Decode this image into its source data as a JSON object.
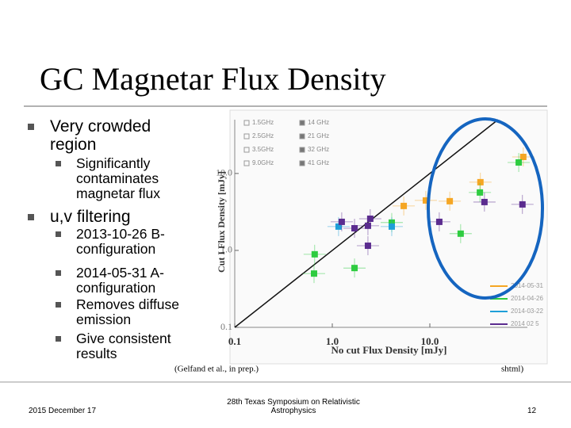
{
  "title": "GC Magnetar Flux Density",
  "bullets": [
    {
      "text": "Very crowded region",
      "sub": [
        "Significantly contaminates magnetar flux"
      ]
    },
    {
      "text": "u,v filtering",
      "sub": [
        "2013-10-26 B-configuration",
        "2014-05-31 A-configuration",
        "Removes diffuse emission",
        "Give consistent results"
      ]
    }
  ],
  "chart_data": {
    "type": "scatter",
    "x_label": "No cut Flux Density [mJy]",
    "y_label": "Cut I Flux Density [mJy]",
    "log": true,
    "xlim": [
      0.1,
      100
    ],
    "ylim": [
      0.1,
      50
    ],
    "xticks": [
      0.1,
      {
        "value": 1,
        "label": "1.0"
      },
      {
        "value": 10,
        "label": "10.0"
      }
    ],
    "yticks": [
      0.1,
      {
        "value": 1,
        "label": "1.0"
      },
      {
        "value": 10,
        "label": "10.0"
      }
    ],
    "frequency_legend": [
      "1.5GHz",
      "14 GHz",
      "2.5GHz",
      "21 GHz",
      "3.5GHz",
      "32 GHz",
      "9.0GHz",
      "41 GHz"
    ],
    "series": [
      {
        "name": "2014-05-31",
        "color": "#f5a623",
        "x": [
          5.4,
          9.1,
          16,
          33,
          90.8
        ],
        "y": [
          3.78,
          4.46,
          4.36,
          7.7,
          16.4
        ]
      },
      {
        "name": "2014-04-26",
        "color": "#2ecc40",
        "x": [
          0.66,
          0.65,
          1.69,
          4.07,
          20.7,
          32.6,
          81.5
        ],
        "y": [
          0.89,
          0.5,
          0.59,
          2.3,
          1.65,
          5.66,
          13.9
        ]
      },
      {
        "name": "2014-03-22",
        "color": "#1e9fd8",
        "x": [
          1.16,
          4.07
        ],
        "y": [
          2.04,
          2.04
        ]
      },
      {
        "name": "2014 02 5",
        "color": "#5b2c8f",
        "x": [
          1.69,
          2.45,
          2.32,
          2.32,
          12.5,
          36.3,
          89,
          1.25
        ],
        "y": [
          1.94,
          2.58,
          2.09,
          1.15,
          2.35,
          4.25,
          3.96,
          2.35
        ]
      }
    ]
  },
  "caption": "(Gelfand et al., in prep.)",
  "caption_fragment": "shtml)",
  "footer": {
    "date": "2015 December 17",
    "event": "28th Texas Symposium on Relativistic Astrophysics",
    "page": "12"
  }
}
